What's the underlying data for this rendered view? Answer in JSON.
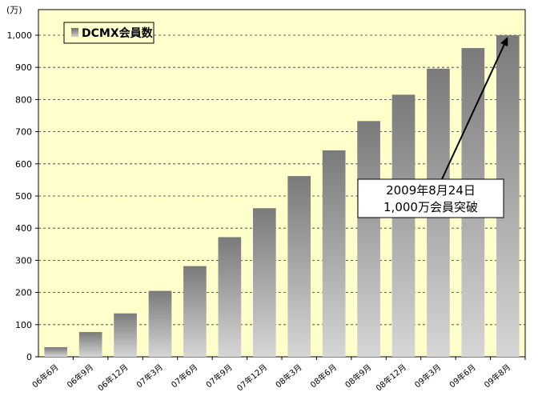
{
  "chart_data": {
    "type": "bar",
    "unit_label": "(万)",
    "categories": [
      "06年6月",
      "06年9月",
      "06年12月",
      "07年3月",
      "07年6月",
      "07年9月",
      "07年12月",
      "08年3月",
      "08年6月",
      "08年9月",
      "08年12月",
      "09年3月",
      "09年6月",
      "09年8月"
    ],
    "series": [
      {
        "name": "DCMX会員数",
        "values": [
          30,
          77,
          135,
          205,
          282,
          372,
          462,
          562,
          642,
          733,
          815,
          896,
          960,
          1000
        ]
      }
    ],
    "ylim": [
      0,
      1000
    ],
    "yticks": [
      "0",
      "100",
      "200",
      "300",
      "400",
      "500",
      "600",
      "700",
      "800",
      "900",
      "1,000"
    ],
    "grid": true,
    "legend": "top-left",
    "annotation": {
      "line1": "2009年8月24日",
      "line2": "1,000万会員突破"
    },
    "colors": {
      "plot_background": "#ffffcc",
      "bar_top": "#808080",
      "bar_bottom": "#d4d4d4",
      "grid": "#333333"
    }
  }
}
